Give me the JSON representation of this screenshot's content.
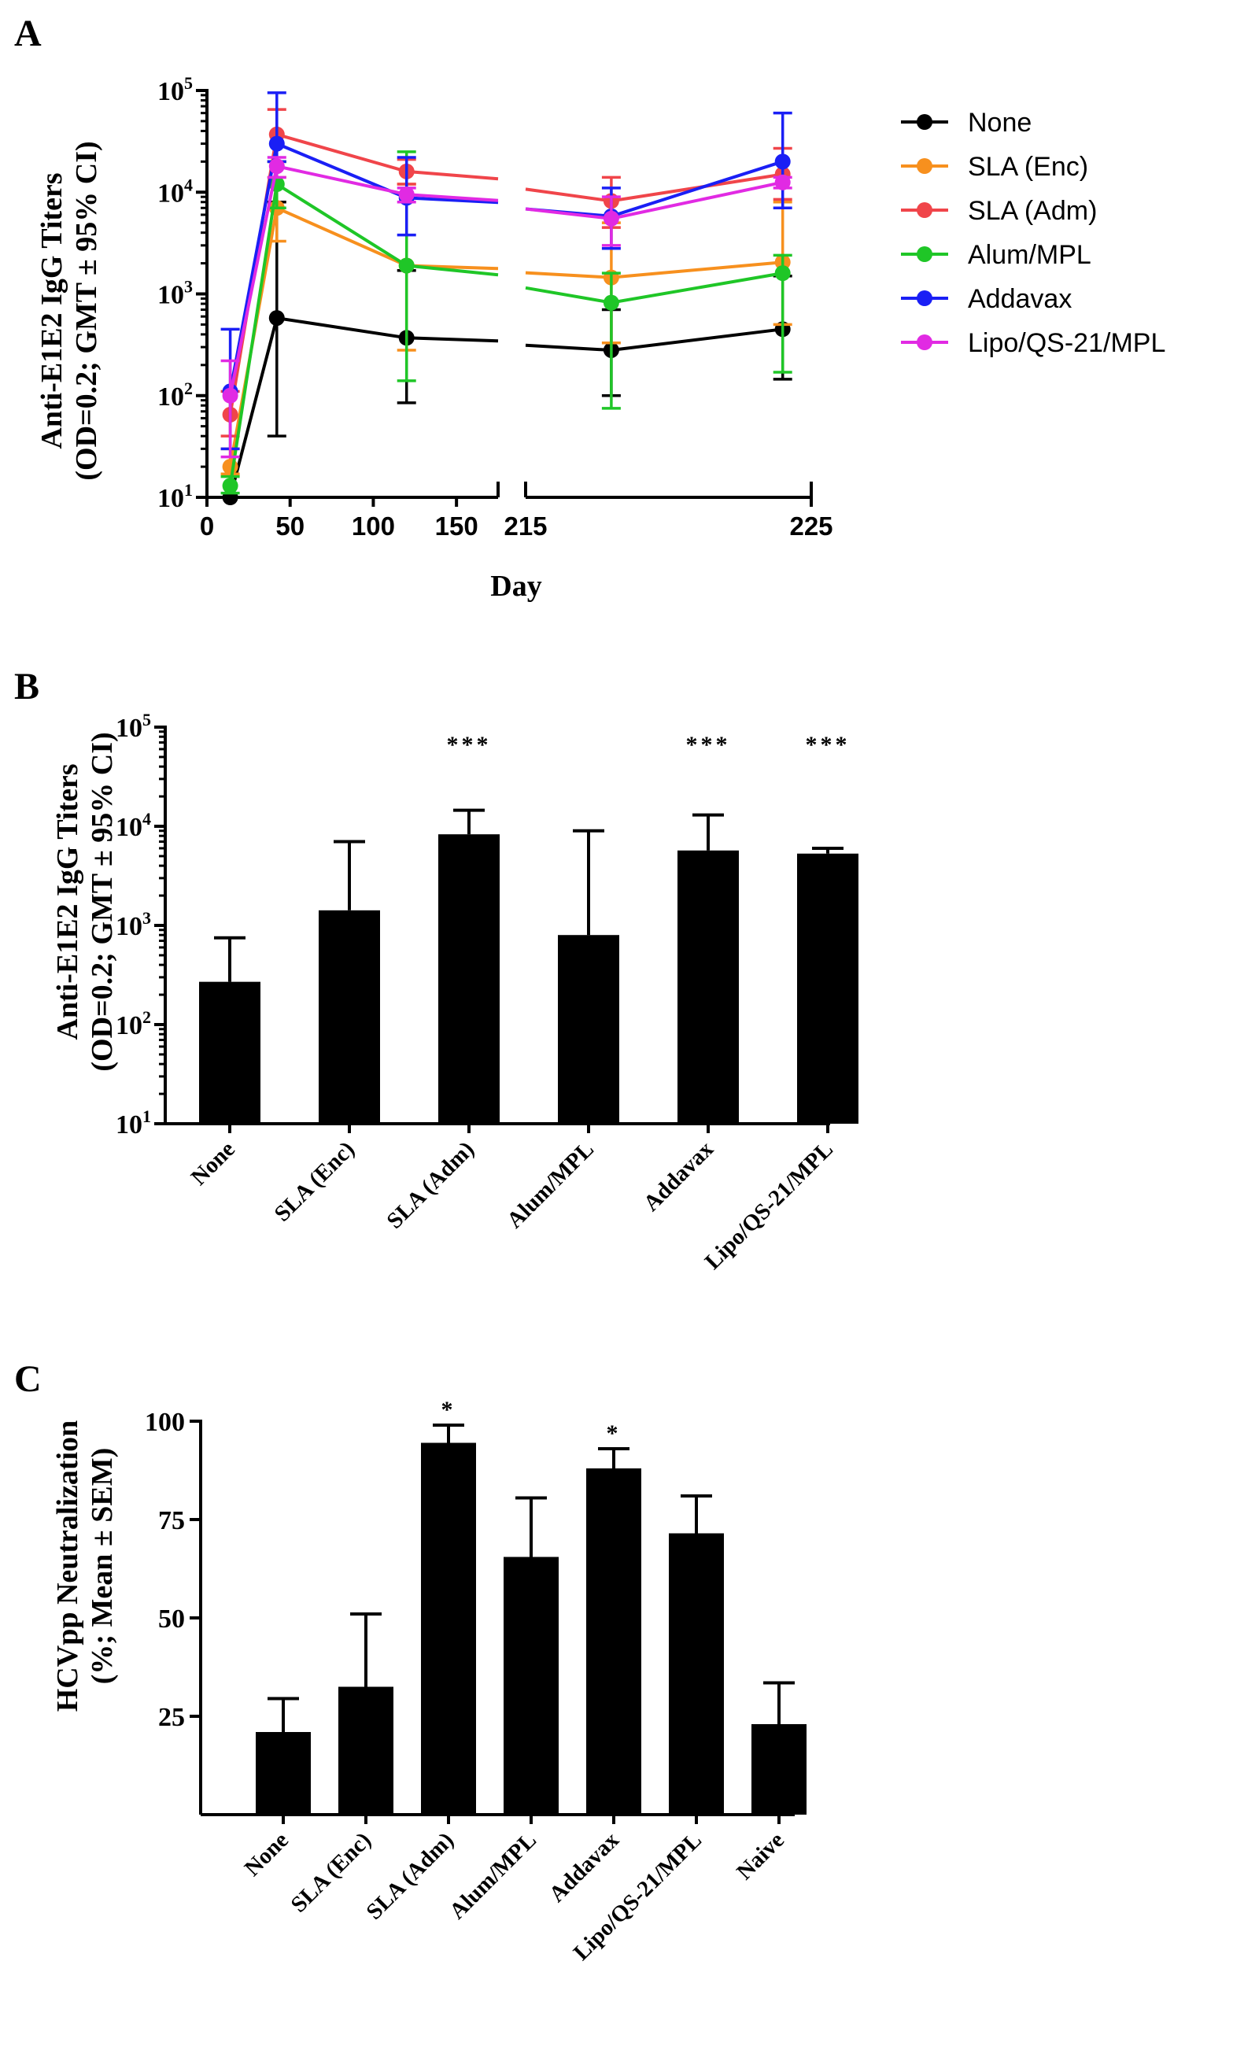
{
  "chart_data": [
    {
      "panel": "A",
      "type": "line",
      "title": "",
      "xlabel": "Day",
      "ylabel": [
        "Anti-E1E2 IgG Titers",
        "(OD=0.2; GMT ± 95% CI)"
      ],
      "yscale": "log",
      "ylim": [
        10,
        100000
      ],
      "y_ticks": [
        {
          "base": "10",
          "exp": "1"
        },
        {
          "base": "10",
          "exp": "2"
        },
        {
          "base": "10",
          "exp": "3"
        },
        {
          "base": "10",
          "exp": "4"
        },
        {
          "base": "10",
          "exp": "5"
        }
      ],
      "x_ticks_left": [
        "0",
        "50",
        "100",
        "150"
      ],
      "x_ticks_right": [
        "215",
        "225"
      ],
      "x": [
        14,
        42,
        120,
        218,
        224
      ],
      "series": [
        {
          "name": "None",
          "color": "#000000",
          "values": [
            10,
            580,
            370,
            280,
            450
          ],
          "err_low": [
            10,
            40,
            85,
            100,
            145
          ],
          "err_high": [
            10,
            8000,
            1700,
            700,
            1500
          ]
        },
        {
          "name": "SLA (Enc)",
          "color": "#f7901e",
          "values": [
            20,
            7000,
            1900,
            1450,
            2050
          ],
          "err_low": [
            17,
            3300,
            280,
            330,
            500
          ],
          "err_high": [
            30,
            14000,
            12000,
            5000,
            8000
          ]
        },
        {
          "name": "SLA (Adm)",
          "color": "#f0454a",
          "values": [
            65,
            37000,
            16000,
            8200,
            15000
          ],
          "err_low": [
            40,
            20000,
            12000,
            4500,
            8500
          ],
          "err_high": [
            110,
            65000,
            21000,
            14000,
            27000
          ]
        },
        {
          "name": "Alum/MPL",
          "color": "#1fc627",
          "values": [
            13,
            12000,
            1900,
            820,
            1600
          ],
          "err_low": [
            11,
            7000,
            140,
            75,
            170
          ],
          "err_high": [
            16,
            20000,
            25000,
            1600,
            2400
          ]
        },
        {
          "name": "Addavax",
          "color": "#1a1ff5",
          "values": [
            110,
            30000,
            8800,
            5800,
            20000
          ],
          "err_low": [
            30,
            20000,
            3800,
            2800,
            7000
          ],
          "err_high": [
            450,
            95000,
            22000,
            11000,
            60000
          ]
        },
        {
          "name": "Lipo/QS-21/MPL",
          "color": "#e12ae3",
          "values": [
            100,
            18000,
            9500,
            5500,
            12500
          ],
          "err_low": [
            25,
            14000,
            8000,
            3000,
            11000
          ],
          "err_high": [
            220,
            22000,
            11000,
            9000,
            14000
          ]
        }
      ],
      "legend": "right"
    },
    {
      "panel": "B",
      "type": "bar",
      "title": "",
      "xlabel": "",
      "ylabel": [
        "Anti-E1E2 IgG Titers",
        "(OD=0.2; GMT ± 95% CI)"
      ],
      "yscale": "log",
      "ylim": [
        10,
        100000
      ],
      "y_ticks": [
        {
          "base": "10",
          "exp": "1"
        },
        {
          "base": "10",
          "exp": "2"
        },
        {
          "base": "10",
          "exp": "3"
        },
        {
          "base": "10",
          "exp": "4"
        },
        {
          "base": "10",
          "exp": "5"
        }
      ],
      "categories": [
        "None",
        "SLA (Enc)",
        "SLA (Adm)",
        "Alum/MPL",
        "Addavax",
        "Lipo/QS-21/MPL"
      ],
      "values": [
        270,
        1420,
        8300,
        800,
        5700,
        5300
      ],
      "err_high": [
        750,
        7000,
        14500,
        9000,
        13000,
        6000
      ],
      "annotations": [
        "",
        "",
        "***",
        "",
        "***",
        "***"
      ]
    },
    {
      "panel": "C",
      "type": "bar",
      "title": "",
      "xlabel": "",
      "ylabel": [
        "HCVpp Neutralization",
        "(%; Mean ± SEM)"
      ],
      "ylim": [
        0,
        100
      ],
      "y_ticks": [
        "25",
        "50",
        "75",
        "100"
      ],
      "categories": [
        "None",
        "SLA (Enc)",
        "SLA (Adm)",
        "Alum/MPL",
        "Addavax",
        "Lipo/QS-21/MPL",
        "Naive"
      ],
      "values": [
        21,
        32.5,
        94.5,
        65.5,
        88,
        71.5,
        23
      ],
      "err_high": [
        29.5,
        51,
        99,
        80.5,
        93,
        81,
        33.5
      ],
      "annotations": [
        "",
        "",
        "*",
        "",
        "*",
        "",
        ""
      ]
    }
  ]
}
